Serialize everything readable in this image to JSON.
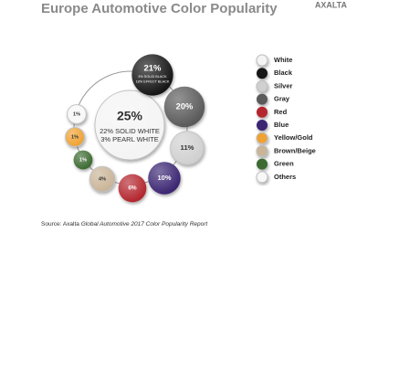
{
  "chart_data": {
    "type": "bubble-ring",
    "title": "Europe Automotive Color Popularity",
    "brand": "AXALTA",
    "categories": [
      "White",
      "Black",
      "Silver",
      "Gray",
      "Red",
      "Blue",
      "Yellow/Gold",
      "Brown/Beige",
      "Green",
      "Others"
    ],
    "values": [
      25,
      21,
      11,
      20,
      6,
      10,
      1,
      4,
      1,
      1
    ],
    "value_labels": [
      "25%",
      "21%",
      "11%",
      "20%",
      "6%",
      "10%",
      "1%",
      "4%",
      "1%",
      "1%"
    ],
    "breakdown": [
      [
        "22% SOLID WHITE",
        "3% PEARL WHITE"
      ],
      [
        "3% SOLID BLACK",
        "18% EFFECT BLACK"
      ],
      null,
      null,
      null,
      null,
      null,
      null,
      null,
      null
    ],
    "colors": [
      "#f4f4f4",
      "#161616",
      "#d0d0d0",
      "#5a5a5a",
      "#b3272d",
      "#3a2672",
      "#f0a232",
      "#c9b497",
      "#3d6b33",
      "#f7f7f7"
    ],
    "source": {
      "prefix": "Source: Axalta",
      "title": "Global Automotive 2017 Color Popularity Report"
    }
  }
}
